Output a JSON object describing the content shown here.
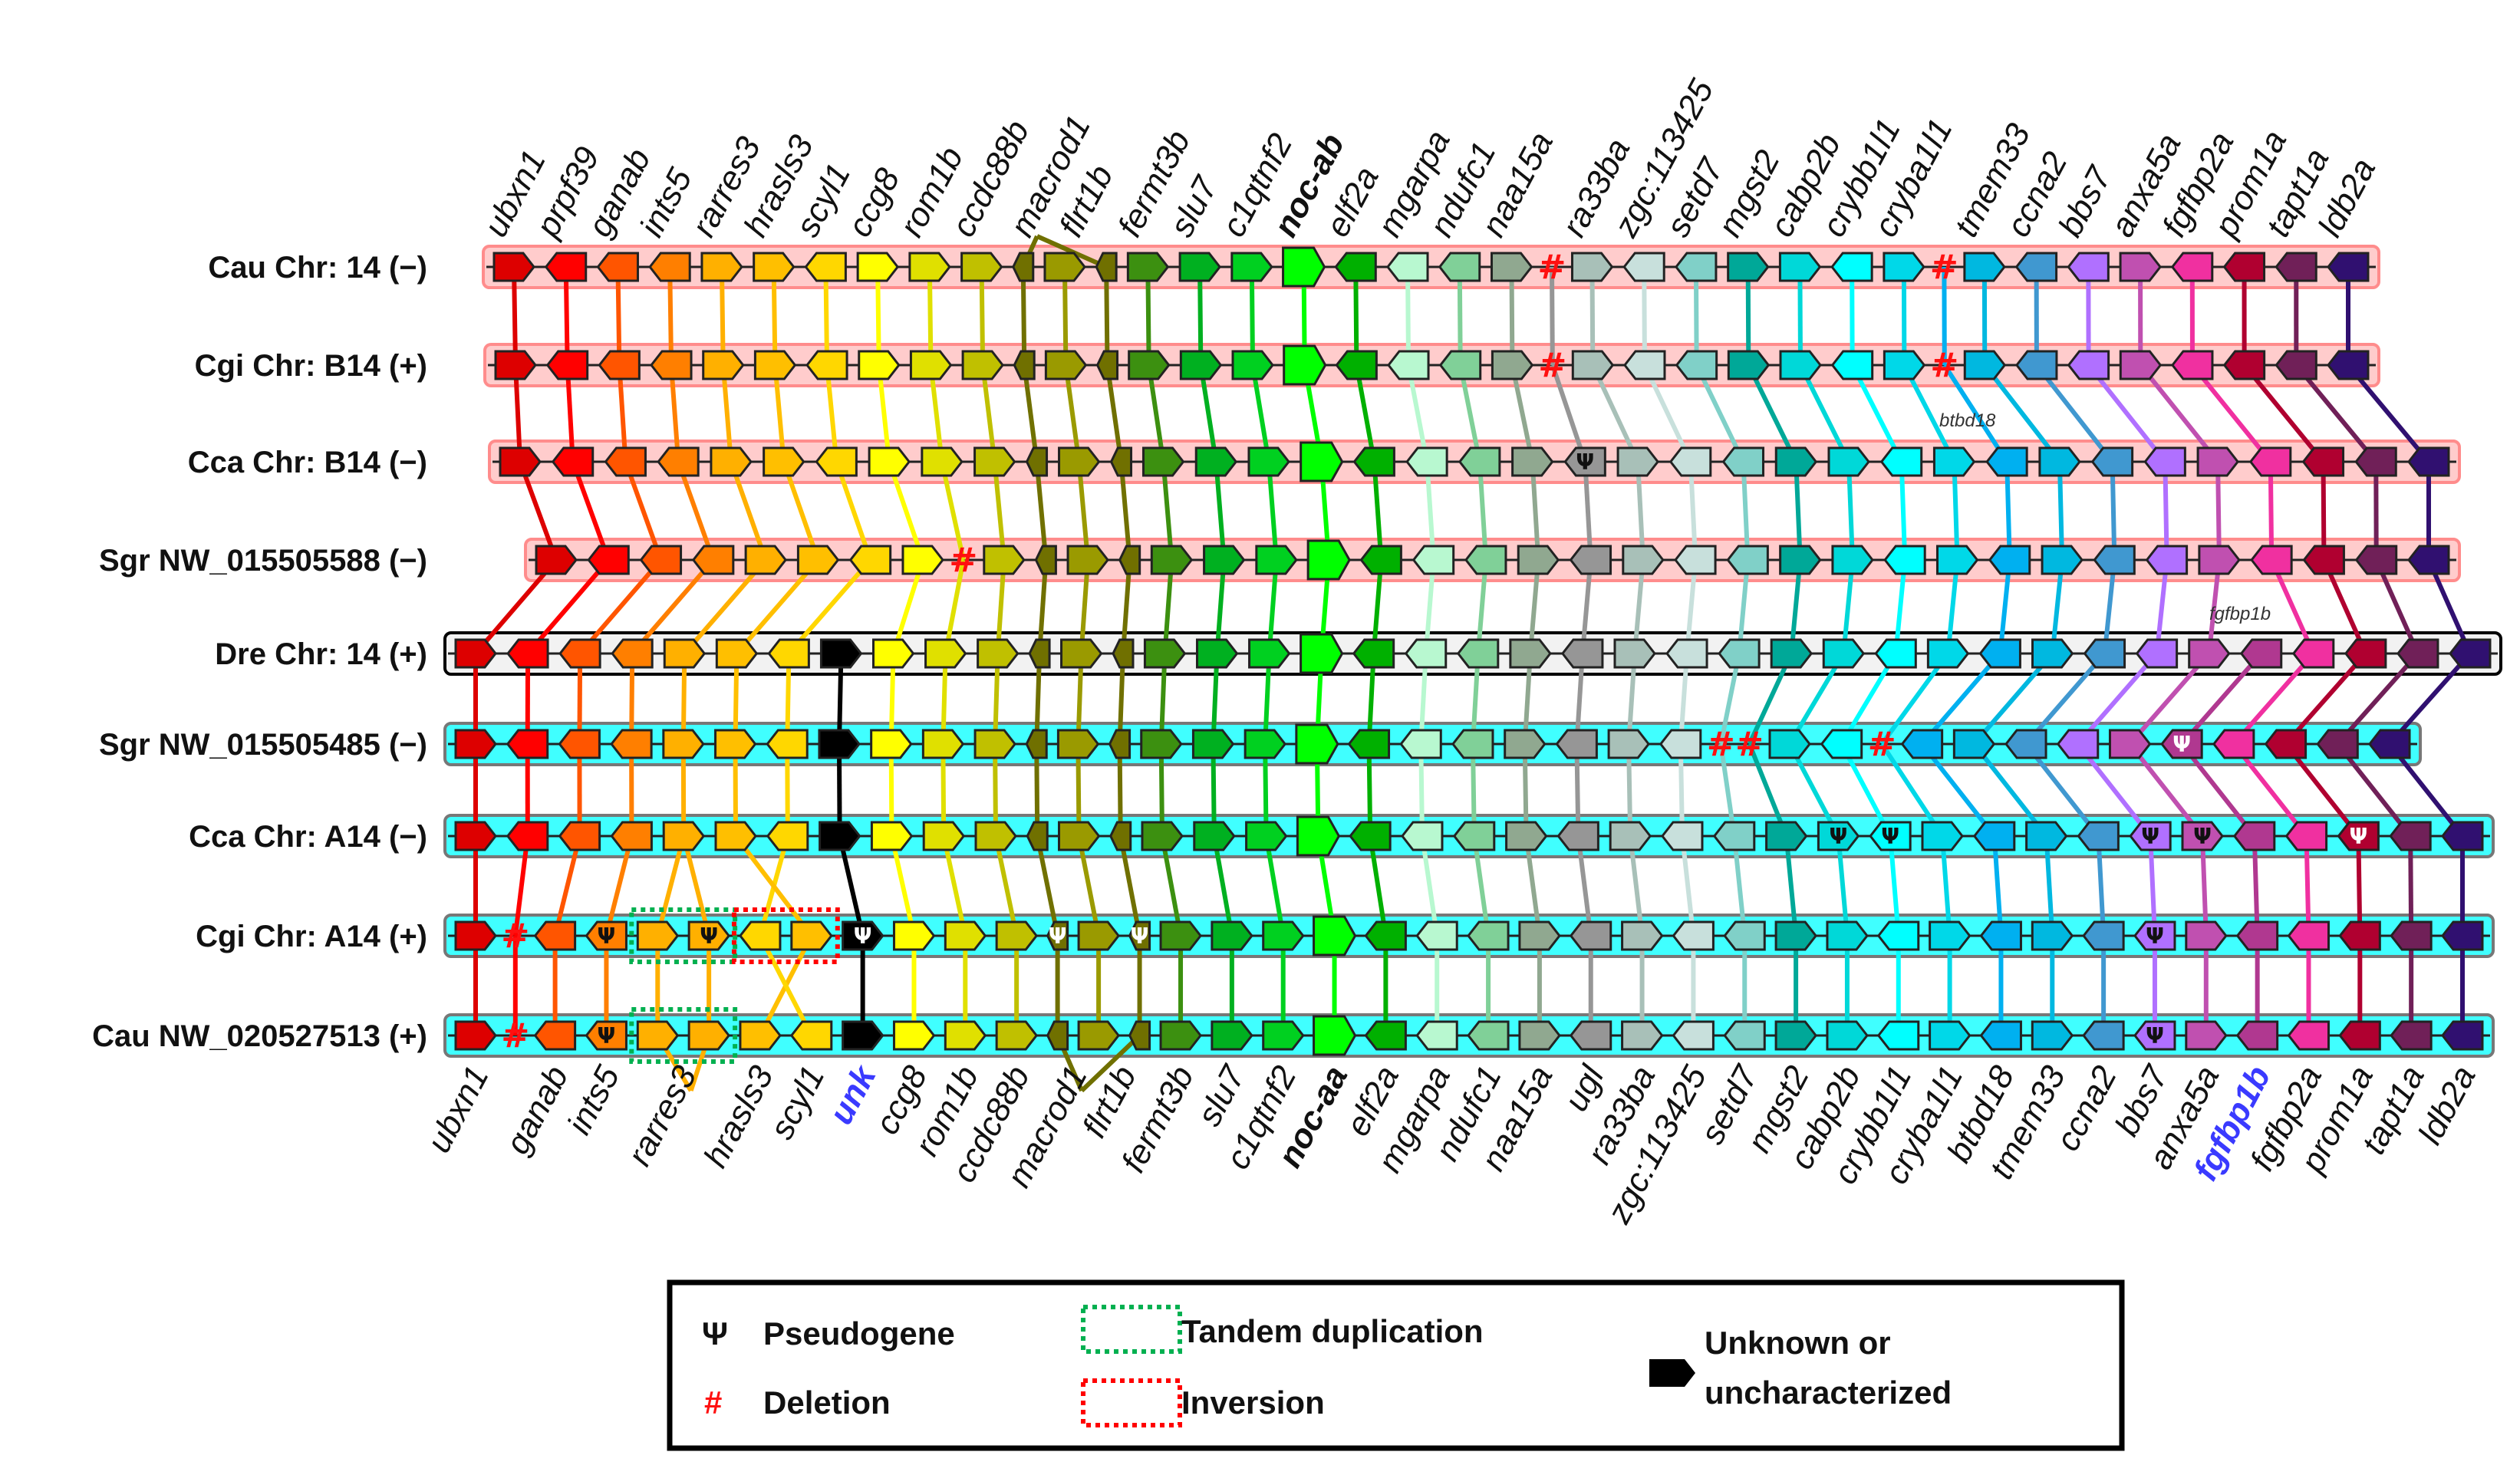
{
  "genes": {
    "ubxn1": {
      "color": "#dd0000",
      "dir": "r"
    },
    "prpf39": {
      "color": "#ff0000",
      "dir": "l"
    },
    "ganab": {
      "color": "#ff5500",
      "dir": "l"
    },
    "ints5": {
      "color": "#ff7f00",
      "dir": "l"
    },
    "rarres3": {
      "color": "#ffb000",
      "dir": "r"
    },
    "hrasls3": {
      "color": "#ffbf00",
      "dir": "r"
    },
    "scyl1": {
      "color": "#ffd700",
      "dir": "l"
    },
    "unk": {
      "color": "#000000",
      "dir": "r"
    },
    "ccg8": {
      "color": "#ffff00",
      "dir": "r"
    },
    "rom1b": {
      "color": "#e0e000",
      "dir": "r"
    },
    "ccdc88b": {
      "color": "#c0c000",
      "dir": "r"
    },
    "macrod1": {
      "color": "#707000",
      "dir": "l"
    },
    "flrt1b": {
      "color": "#9a9a00",
      "dir": "r"
    },
    "fermt3b": {
      "color": "#3c9010",
      "dir": "r"
    },
    "slu7": {
      "color": "#00b020",
      "dir": "r"
    },
    "c1qtnf2": {
      "color": "#00d020",
      "dir": "r"
    },
    "noc": {
      "color": "#00ff00",
      "dir": "r"
    },
    "elf2a": {
      "color": "#00b000",
      "dir": "l"
    },
    "mgarpa": {
      "color": "#b8f8d0",
      "dir": "l"
    },
    "ndufc1": {
      "color": "#80d098",
      "dir": "l"
    },
    "naa15a": {
      "color": "#90a890",
      "dir": "r"
    },
    "ugl": {
      "color": "#969696",
      "dir": "l"
    },
    "ra33ba": {
      "color": "#a8c0b8",
      "dir": "r"
    },
    "zgc": {
      "color": "#c8e0dc",
      "dir": "l"
    },
    "setd7": {
      "color": "#80d0c8",
      "dir": "l"
    },
    "mgst2": {
      "color": "#00a898",
      "dir": "r"
    },
    "cabp2b": {
      "color": "#00d8d8",
      "dir": "r"
    },
    "crybb1l1": {
      "color": "#00ffff",
      "dir": "l"
    },
    "cryba1l1": {
      "color": "#00d8e8",
      "dir": "r"
    },
    "btbd18": {
      "color": "#00b0f0",
      "dir": "l"
    },
    "tmem33": {
      "color": "#00b8e0",
      "dir": "r"
    },
    "ccna2": {
      "color": "#4098d0",
      "dir": "l"
    },
    "bbs7": {
      "color": "#b070ff",
      "dir": "l"
    },
    "anxa5a": {
      "color": "#c050b0",
      "dir": "r"
    },
    "fgfbp1b": {
      "color": "#b03890",
      "dir": "l"
    },
    "fgfbp2a": {
      "color": "#f030a0",
      "dir": "l"
    },
    "prom1a": {
      "color": "#b00030",
      "dir": "l"
    },
    "tapt1a": {
      "color": "#702058",
      "dir": "l"
    },
    "ldb2a": {
      "color": "#301070",
      "dir": "l"
    }
  },
  "rows": [
    {
      "label": "Cau Chr: 14 (−)",
      "style": "pink",
      "genes": [
        "ubxn1",
        "prpf39",
        "ganab",
        "ints5",
        "rarres3",
        "hrasls3",
        "scyl1",
        "ccg8",
        "rom1b",
        "ccdc88b",
        "macrod1",
        "flrt1b",
        "macrod1",
        "fermt3b",
        "slu7",
        "c1qtnf2",
        "noc",
        "elf2a",
        "mgarpa",
        "ndufc1",
        "naa15a",
        "#ugl",
        "ra33ba",
        "zgc",
        "setd7",
        "mgst2",
        "cabp2b",
        "crybb1l1",
        "cryba1l1",
        "#btbd18",
        "tmem33",
        "ccna2",
        "bbs7",
        "anxa5a",
        "fgfbp2a",
        "prom1a",
        "tapt1a",
        "ldb2a"
      ]
    },
    {
      "label": "Cgi Chr: B14 (+)",
      "style": "pink",
      "genes": [
        "ubxn1",
        "prpf39",
        "ganab",
        "ints5",
        "rarres3",
        "hrasls3",
        "scyl1",
        "ccg8",
        "rom1b",
        "ccdc88b",
        "macrod1",
        "flrt1b",
        "macrod1",
        "fermt3b",
        "slu7",
        "c1qtnf2",
        "noc",
        "elf2a",
        "mgarpa",
        "ndufc1",
        "naa15a",
        "#ugl",
        "ra33ba",
        "zgc",
        "setd7",
        "mgst2",
        "cabp2b",
        "crybb1l1",
        "cryba1l1",
        "#btbd18",
        "tmem33",
        "ccna2",
        "bbs7",
        "anxa5a",
        "fgfbp2a",
        "prom1a",
        "tapt1a",
        "ldb2a"
      ]
    },
    {
      "label": "Cca Chr: B14 (−)",
      "style": "pink",
      "genes": [
        "ubxn1",
        "prpf39",
        "ganab",
        "ints5",
        "rarres3",
        "hrasls3",
        "scyl1",
        "ccg8",
        "rom1b",
        "ccdc88b",
        "macrod1",
        "flrt1b",
        "macrod1",
        "fermt3b",
        "slu7",
        "c1qtnf2",
        "noc",
        "elf2a",
        "mgarpa",
        "ndufc1",
        "naa15a",
        "*ugl",
        "ra33ba",
        "zgc",
        "setd7",
        "mgst2",
        "cabp2b",
        "crybb1l1",
        "cryba1l1",
        "btbd18",
        "tmem33",
        "ccna2",
        "bbs7",
        "anxa5a",
        "fgfbp2a",
        "prom1a",
        "tapt1a",
        "ldb2a"
      ]
    },
    {
      "label": "Sgr NW_015505588  (−)",
      "style": "pink",
      "genes": [
        "ubxn1",
        "prpf39",
        "ganab",
        "ints5",
        "rarres3",
        "hrasls3",
        "scyl1",
        "ccg8",
        "#rom1b",
        "ccdc88b",
        "macrod1",
        "flrt1b",
        "macrod1",
        "fermt3b",
        "slu7",
        "c1qtnf2",
        "noc",
        "elf2a",
        "mgarpa",
        "ndufc1",
        "naa15a",
        "ugl",
        "ra33ba",
        "zgc",
        "setd7",
        "mgst2",
        "cabp2b",
        "crybb1l1",
        "cryba1l1",
        "btbd18",
        "tmem33",
        "ccna2",
        "bbs7",
        "anxa5a",
        "fgfbp2a",
        "prom1a",
        "tapt1a",
        "ldb2a"
      ]
    },
    {
      "label": "Dre Chr: 14 (+)",
      "style": "grey",
      "genes": [
        "ubxn1",
        "prpf39",
        "ganab",
        "ints5",
        "rarres3",
        "hrasls3",
        "scyl1",
        "unk",
        "ccg8",
        "rom1b",
        "ccdc88b",
        "macrod1",
        "flrt1b",
        "macrod1",
        "fermt3b",
        "slu7",
        "c1qtnf2",
        "noc",
        "elf2a",
        "mgarpa",
        "ndufc1",
        "naa15a",
        "ugl",
        "ra33ba",
        "zgc",
        "setd7",
        "mgst2",
        "cabp2b",
        "crybb1l1",
        "cryba1l1",
        "btbd18",
        "tmem33",
        "ccna2",
        "bbs7",
        "anxa5a",
        "fgfbp1b",
        "fgfbp2a",
        "prom1a",
        "tapt1a",
        "ldb2a"
      ]
    },
    {
      "label": "Sgr NW_015505485 (−)",
      "style": "cyan",
      "genes": [
        "ubxn1",
        "prpf39",
        "ganab",
        "ints5",
        "rarres3",
        "hrasls3",
        "scyl1",
        "unk",
        "ccg8",
        "rom1b",
        "ccdc88b",
        "macrod1",
        "flrt1b",
        "macrod1",
        "fermt3b",
        "slu7",
        "c1qtnf2",
        "noc",
        "elf2a",
        "mgarpa",
        "ndufc1",
        "naa15a",
        "ugl",
        "ra33ba",
        "zgc",
        "#setd7",
        "#mgst2",
        "cabp2b",
        "crybb1l1",
        "#cryba1l1",
        "btbd18",
        "tmem33",
        "ccna2",
        "bbs7",
        "anxa5a",
        "*fgfbp1b",
        "fgfbp2a",
        "prom1a",
        "tapt1a",
        "ldb2a"
      ]
    },
    {
      "label": "Cca Chr: A14 (−)",
      "style": "cyan",
      "genes": [
        "ubxn1",
        "prpf39",
        "ganab",
        "ints5",
        "rarres3",
        "hrasls3",
        "scyl1",
        "unk",
        "ccg8",
        "rom1b",
        "ccdc88b",
        "macrod1",
        "flrt1b",
        "macrod1",
        "fermt3b",
        "slu7",
        "c1qtnf2",
        "noc",
        "elf2a",
        "mgarpa",
        "ndufc1",
        "naa15a",
        "ugl",
        "ra33ba",
        "zgc",
        "setd7",
        "mgst2",
        "*cabp2b",
        "*crybb1l1",
        "cryba1l1",
        "btbd18",
        "tmem33",
        "ccna2",
        "*bbs7",
        "*anxa5a",
        "fgfbp1b",
        "fgfbp2a",
        "*prom1a",
        "tapt1a",
        "ldb2a"
      ]
    },
    {
      "label": "Cgi Chr: A14 (+)",
      "style": "cyan",
      "genes": [
        "ubxn1",
        "#prpf39",
        "ganab",
        "*ints5",
        "rarres3",
        "*rarres3",
        "scyl1",
        "hrasls3",
        "*unk",
        "ccg8",
        "rom1b",
        "ccdc88b",
        "*macrod1",
        "flrt1b",
        "*macrod1",
        "fermt3b",
        "slu7",
        "c1qtnf2",
        "noc",
        "elf2a",
        "mgarpa",
        "ndufc1",
        "naa15a",
        "ugl",
        "ra33ba",
        "zgc",
        "setd7",
        "mgst2",
        "cabp2b",
        "crybb1l1",
        "cryba1l1",
        "btbd18",
        "tmem33",
        "ccna2",
        "*bbs7",
        "anxa5a",
        "fgfbp1b",
        "fgfbp2a",
        "prom1a",
        "tapt1a",
        "ldb2a"
      ],
      "boxes": [
        {
          "type": "tandem",
          "from": 4,
          "to": 5
        },
        {
          "type": "inversion",
          "from": 6,
          "to": 7
        }
      ]
    },
    {
      "label": "Cau  NW_020527513 (+)",
      "style": "cyan",
      "genes": [
        "ubxn1",
        "#prpf39",
        "ganab",
        "*ints5",
        "rarres3",
        "rarres3",
        "hrasls3",
        "scyl1",
        "unk",
        "ccg8",
        "rom1b",
        "ccdc88b",
        "macrod1",
        "flrt1b",
        "macrod1",
        "fermt3b",
        "slu7",
        "c1qtnf2",
        "noc",
        "elf2a",
        "mgarpa",
        "ndufc1",
        "naa15a",
        "ugl",
        "ra33ba",
        "zgc",
        "setd7",
        "mgst2",
        "cabp2b",
        "crybb1l1",
        "cryba1l1",
        "btbd18",
        "tmem33",
        "ccna2",
        "*bbs7",
        "anxa5a",
        "fgfbp1b",
        "fgfbp2a",
        "prom1a",
        "tapt1a",
        "ldb2a"
      ],
      "boxes": [
        {
          "type": "tandem",
          "from": 4,
          "to": 5
        }
      ]
    }
  ],
  "top_labels": [
    {
      "text": "ubxn1",
      "gene": "ubxn1"
    },
    {
      "text": "prpf39",
      "gene": "prpf39"
    },
    {
      "text": "ganab",
      "gene": "ganab"
    },
    {
      "text": "ints5",
      "gene": "ints5"
    },
    {
      "text": "rarres3",
      "gene": "rarres3"
    },
    {
      "text": "hrasls3",
      "gene": "hrasls3"
    },
    {
      "text": "scyl1",
      "gene": "scyl1"
    },
    {
      "text": "ccg8",
      "gene": "ccg8"
    },
    {
      "text": "rom1b",
      "gene": "rom1b"
    },
    {
      "text": "ccdc88b",
      "gene": "ccdc88b"
    },
    {
      "text": "macrod1",
      "gene": "macrod1"
    },
    {
      "text": "flrt1b",
      "gene": "flrt1b"
    },
    {
      "text": "fermt3b",
      "gene": "fermt3b"
    },
    {
      "text": "slu7",
      "gene": "slu7"
    },
    {
      "text": "c1qtnf2",
      "gene": "c1qtnf2"
    },
    {
      "text": "noc-ab",
      "gene": "noc",
      "bold": true
    },
    {
      "text": "elf2a",
      "gene": "elf2a"
    },
    {
      "text": "mgarpa",
      "gene": "mgarpa"
    },
    {
      "text": "ndufc1",
      "gene": "ndufc1"
    },
    {
      "text": "naa15a",
      "gene": "naa15a"
    },
    {
      "text": "ra33ba",
      "gene": "ra33ba"
    },
    {
      "text": "zgc:113425",
      "gene": "zgc"
    },
    {
      "text": "setd7",
      "gene": "setd7"
    },
    {
      "text": "mgst2",
      "gene": "mgst2"
    },
    {
      "text": "cabp2b",
      "gene": "cabp2b"
    },
    {
      "text": "crybb1l1",
      "gene": "crybb1l1"
    },
    {
      "text": "cryba1l1",
      "gene": "cryba1l1"
    },
    {
      "text": "tmem33",
      "gene": "tmem33"
    },
    {
      "text": "ccna2",
      "gene": "ccna2"
    },
    {
      "text": "bbs7",
      "gene": "bbs7"
    },
    {
      "text": "anxa5a",
      "gene": "anxa5a"
    },
    {
      "text": "fgfbp2a",
      "gene": "fgfbp2a"
    },
    {
      "text": "prom1a",
      "gene": "prom1a"
    },
    {
      "text": "tapt1a",
      "gene": "tapt1a"
    },
    {
      "text": "ldb2a",
      "gene": "ldb2a"
    }
  ],
  "bottom_labels": [
    {
      "text": "ubxn1",
      "gene": "ubxn1"
    },
    {
      "text": "ganab",
      "gene": "ganab"
    },
    {
      "text": "ints5",
      "gene": "ints5"
    },
    {
      "text": "rarres3",
      "gene": "rarres3"
    },
    {
      "text": "hrasls3",
      "gene": "hrasls3"
    },
    {
      "text": "scyl1",
      "gene": "scyl1"
    },
    {
      "text": "unk",
      "gene": "unk",
      "bold": true,
      "color": "#3a3aff"
    },
    {
      "text": "ccg8",
      "gene": "ccg8"
    },
    {
      "text": "rom1b",
      "gene": "rom1b"
    },
    {
      "text": "ccdc88b",
      "gene": "ccdc88b"
    },
    {
      "text": "macrod1",
      "gene": "macrod1"
    },
    {
      "text": "flrt1b",
      "gene": "flrt1b"
    },
    {
      "text": "fermt3b",
      "gene": "fermt3b"
    },
    {
      "text": "slu7",
      "gene": "slu7"
    },
    {
      "text": "c1qtnf2",
      "gene": "c1qtnf2"
    },
    {
      "text": "noc-aa",
      "gene": "noc",
      "bold": true
    },
    {
      "text": "elf2a",
      "gene": "elf2a"
    },
    {
      "text": "mgarpa",
      "gene": "mgarpa"
    },
    {
      "text": "ndufc1",
      "gene": "ndufc1"
    },
    {
      "text": "naa15a",
      "gene": "naa15a"
    },
    {
      "text": "ugl",
      "gene": "ugl"
    },
    {
      "text": "ra33ba",
      "gene": "ra33ba"
    },
    {
      "text": "zgc:113425",
      "gene": "zgc"
    },
    {
      "text": "setd7",
      "gene": "setd7"
    },
    {
      "text": "mgst2",
      "gene": "mgst2"
    },
    {
      "text": "cabp2b",
      "gene": "cabp2b"
    },
    {
      "text": "crybb1l1",
      "gene": "crybb1l1"
    },
    {
      "text": "cryba1l1",
      "gene": "cryba1l1"
    },
    {
      "text": "btbd18",
      "gene": "btbd18"
    },
    {
      "text": "tmem33",
      "gene": "tmem33"
    },
    {
      "text": "ccna2",
      "gene": "ccna2"
    },
    {
      "text": "bbs7",
      "gene": "bbs7"
    },
    {
      "text": "anxa5a",
      "gene": "anxa5a"
    },
    {
      "text": "fgfbp1b",
      "gene": "fgfbp1b",
      "bold": true,
      "color": "#3a3aff"
    },
    {
      "text": "fgfbp2a",
      "gene": "fgfbp2a"
    },
    {
      "text": "prom1a",
      "gene": "prom1a"
    },
    {
      "text": "tapt1a",
      "gene": "tapt1a"
    },
    {
      "text": "ldb2a",
      "gene": "ldb2a"
    }
  ],
  "annotations": {
    "btbd18": "btbd18",
    "fgfbp1b": "fgfbp1b"
  },
  "legend": {
    "psi_symbol": "Ψ",
    "pseudogene": "Pseudogene",
    "del_symbol": "#",
    "deletion": "Deletion",
    "tandem": "Tandem duplication",
    "inversion": "Inversion",
    "unknown_1": "Unknown or",
    "unknown_2": "uncharacterized"
  },
  "colors": {
    "pink_band": "#ffcccc",
    "pink_border": "#ff8c8c",
    "cyan_band": "#40ffff",
    "grey_band": "#f2f2f2",
    "deletion": "#ff1010",
    "tandem": "#00b050",
    "inversion": "#ff0000"
  }
}
